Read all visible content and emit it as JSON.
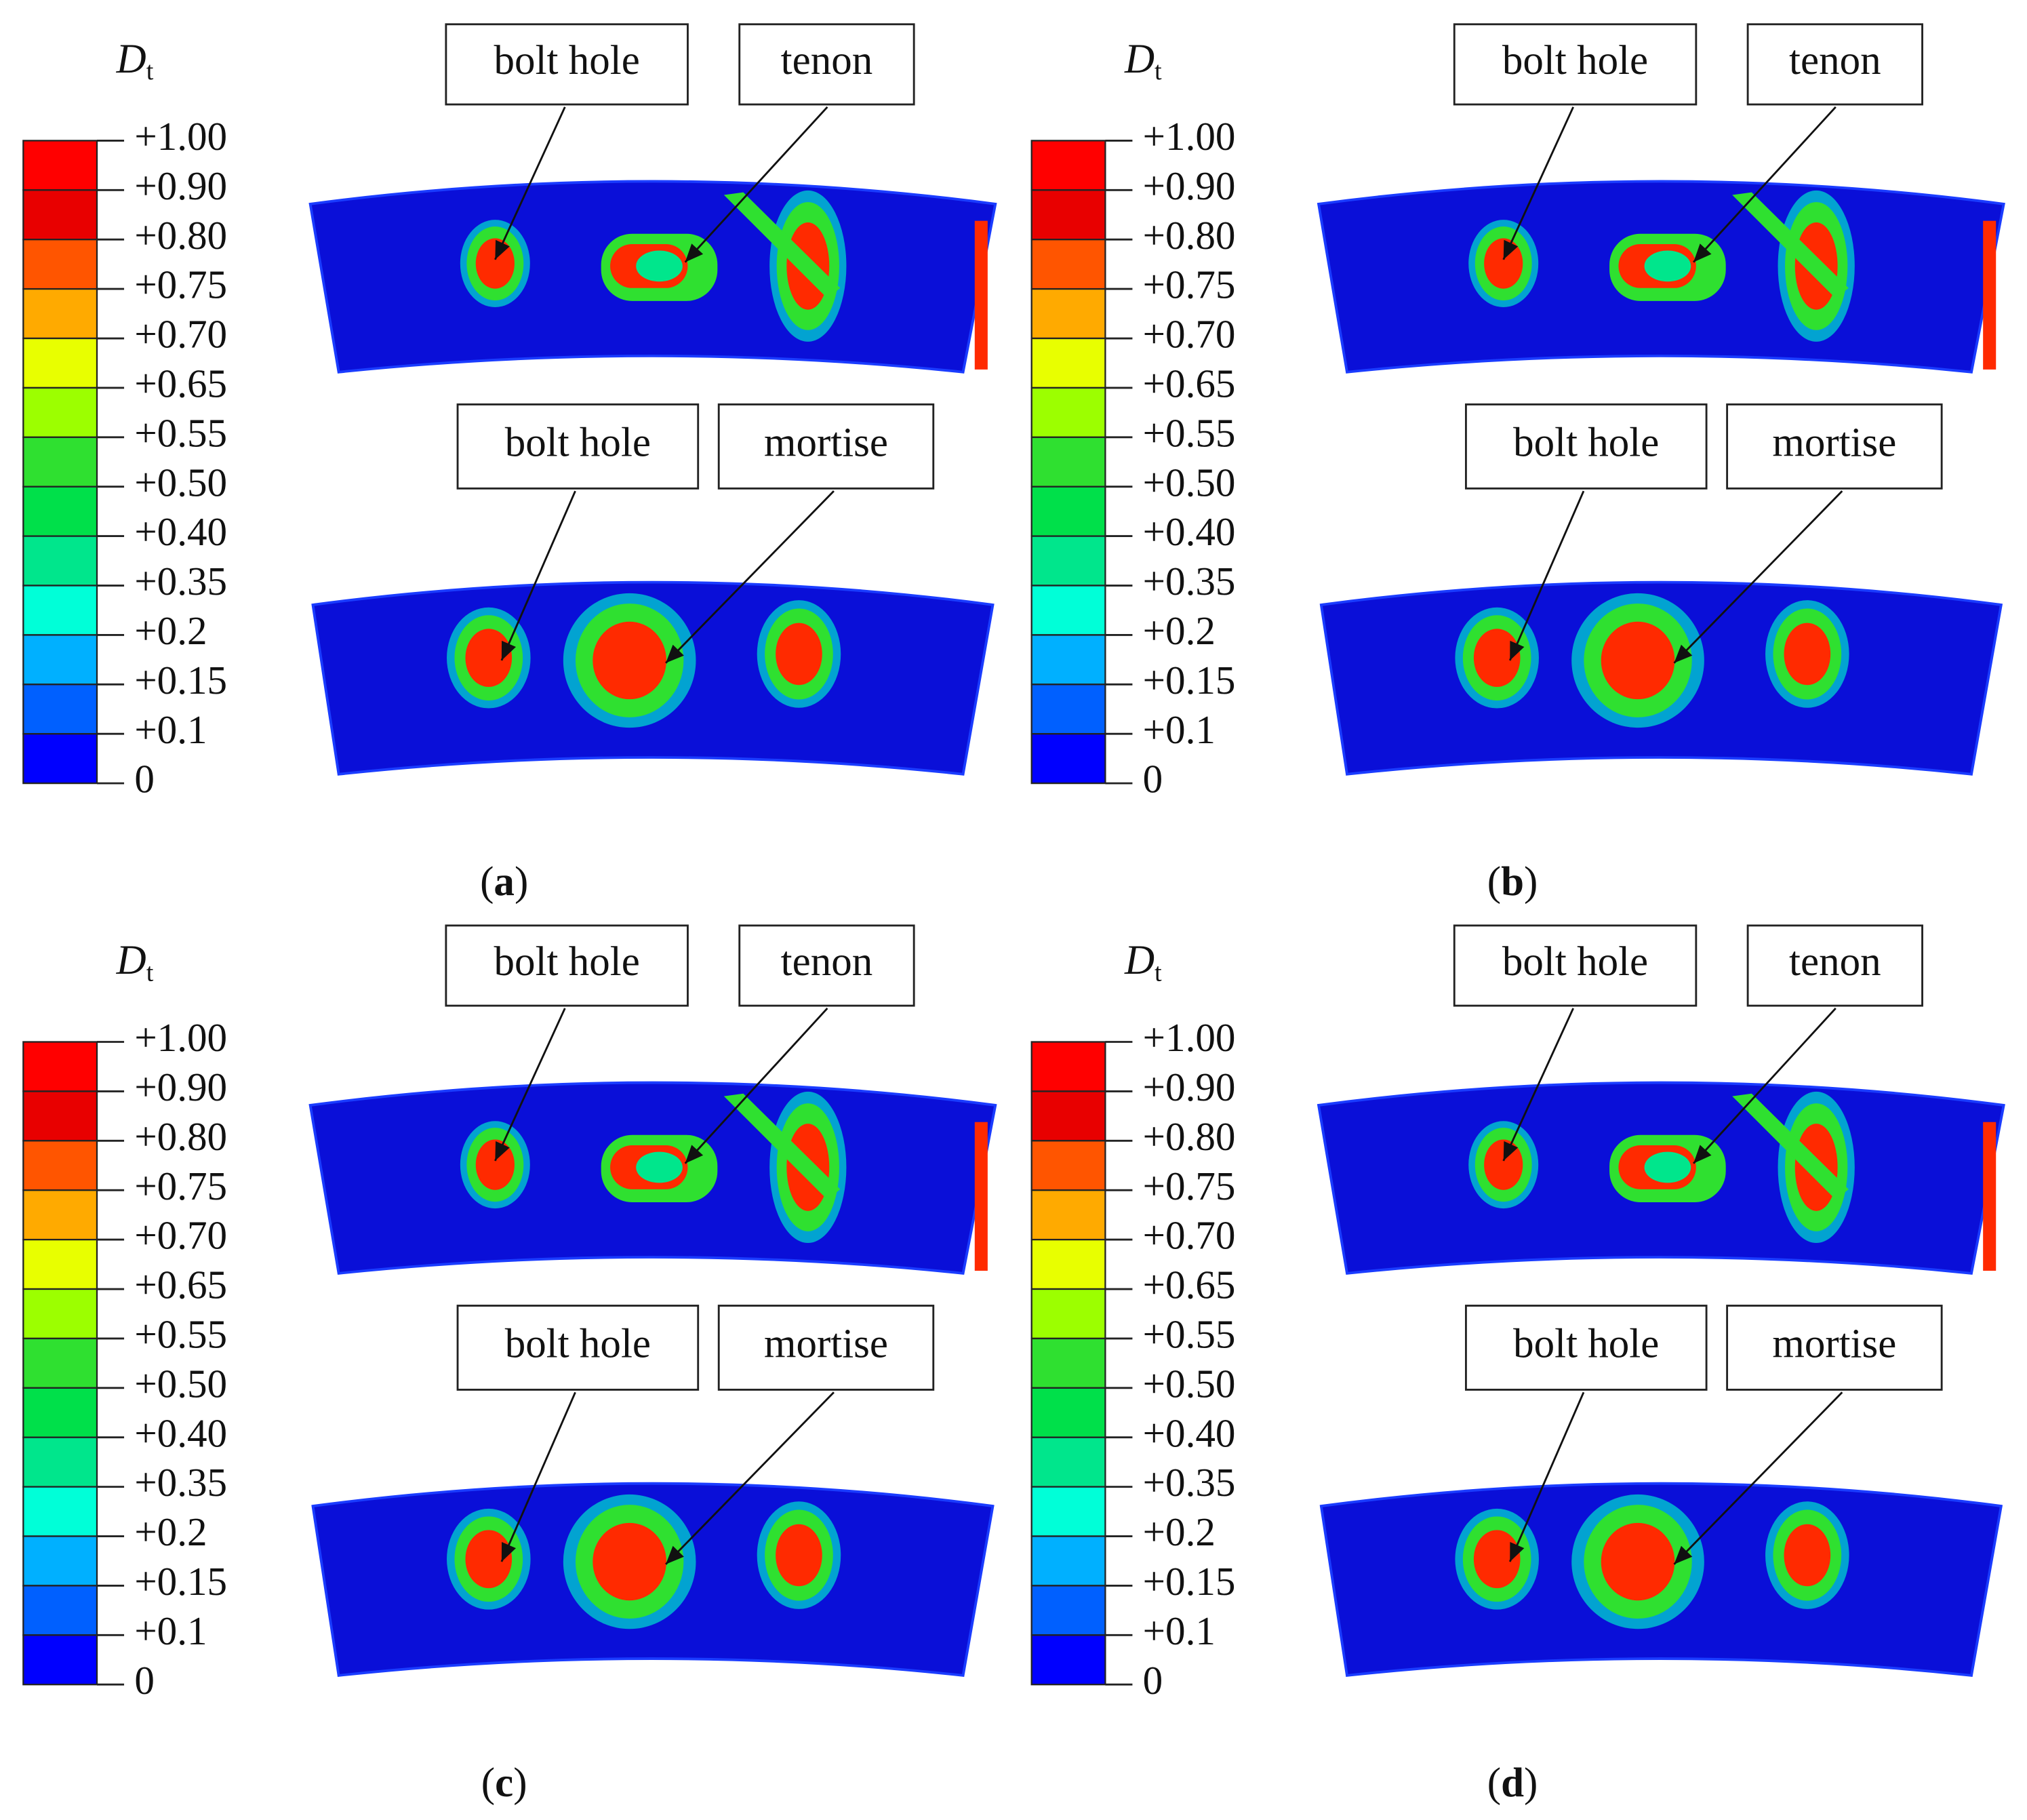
{
  "panels": [
    {
      "legend_symbol": "D",
      "legend_subscript": "t",
      "legend_labels": [
        "+1.00",
        "+0.90",
        "+0.80",
        "+0.75",
        "+0.70",
        "+0.65",
        "+0.55",
        "+0.50",
        "+0.40",
        "+0.35",
        "+0.2",
        "+0.15",
        "+0.1",
        "0"
      ],
      "callouts": [
        "bolt hole",
        "tenon",
        "bolt hole",
        "mortise"
      ],
      "caption": [
        "(",
        "a",
        ")"
      ]
    },
    {
      "legend_symbol": "D",
      "legend_subscript": "t",
      "legend_labels": [
        "+1.00",
        "+0.90",
        "+0.80",
        "+0.75",
        "+0.70",
        "+0.65",
        "+0.55",
        "+0.50",
        "+0.40",
        "+0.35",
        "+0.2",
        "+0.15",
        "+0.1",
        "0"
      ],
      "callouts": [
        "bolt hole",
        "tenon",
        "bolt hole",
        "mortise"
      ],
      "caption": [
        "(",
        "b",
        ")"
      ]
    },
    {
      "legend_symbol": "D",
      "legend_subscript": "t",
      "legend_labels": [
        "+1.00",
        "+0.90",
        "+0.80",
        "+0.75",
        "+0.70",
        "+0.65",
        "+0.55",
        "+0.50",
        "+0.40",
        "+0.35",
        "+0.2",
        "+0.15",
        "+0.1",
        "0"
      ],
      "callouts": [
        "bolt hole",
        "tenon",
        "bolt hole",
        "mortise"
      ],
      "caption": [
        "(",
        "c",
        ")"
      ]
    },
    {
      "legend_symbol": "D",
      "legend_subscript": "t",
      "legend_labels": [
        "+1.00",
        "+0.90",
        "+0.80",
        "+0.75",
        "+0.70",
        "+0.65",
        "+0.55",
        "+0.50",
        "+0.40",
        "+0.35",
        "+0.2",
        "+0.15",
        "+0.1",
        "0"
      ],
      "callouts": [
        "bolt hole",
        "tenon",
        "bolt hole",
        "mortise"
      ],
      "caption": [
        "(",
        "d",
        ")"
      ]
    }
  ]
}
